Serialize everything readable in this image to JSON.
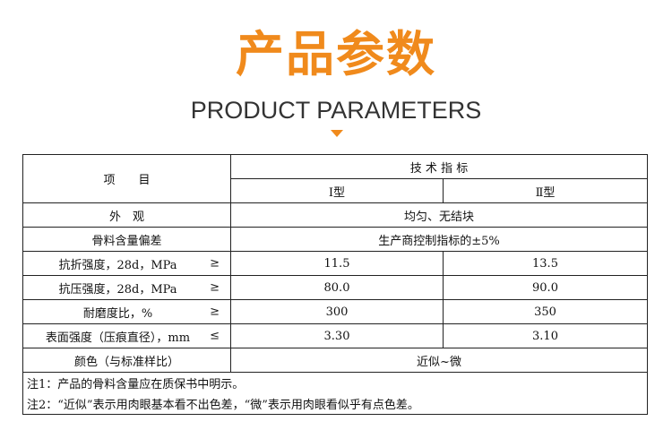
{
  "header": {
    "title": "产品参数",
    "subtitle": "PRODUCT PARAMETERS",
    "accent_color": "#f08a1c"
  },
  "table": {
    "item_header": "项　　目",
    "spec_header": "技 术 指 标",
    "type1": "Ⅰ型",
    "type2": "Ⅱ型",
    "rows": [
      {
        "label": "外　观",
        "merged": "均匀、无结块"
      },
      {
        "label": "骨料含量偏差",
        "merged": "生产商控制指标的±5%"
      },
      {
        "label": "抗折强度，28d，MPa",
        "sym": "≥",
        "v1": "11.5",
        "v2": "13.5"
      },
      {
        "label": "抗压强度，28d，MPa",
        "sym": "≥",
        "v1": "80.0",
        "v2": "90.0"
      },
      {
        "label": "耐磨度比，%",
        "sym": "≥",
        "v1": "300",
        "v2": "350"
      },
      {
        "label": "表面强度（压痕直径），mm",
        "sym": "≤",
        "v1": "3.30",
        "v2": "3.10"
      },
      {
        "label": "颜色（与标准样比）",
        "merged": "近似~微"
      }
    ],
    "notes": [
      "注1：产品的骨料含量应在质保书中明示。",
      "注2：“近似”表示用肉眼基本看不出色差，“微”表示用肉眼看似乎有点色差。"
    ]
  }
}
